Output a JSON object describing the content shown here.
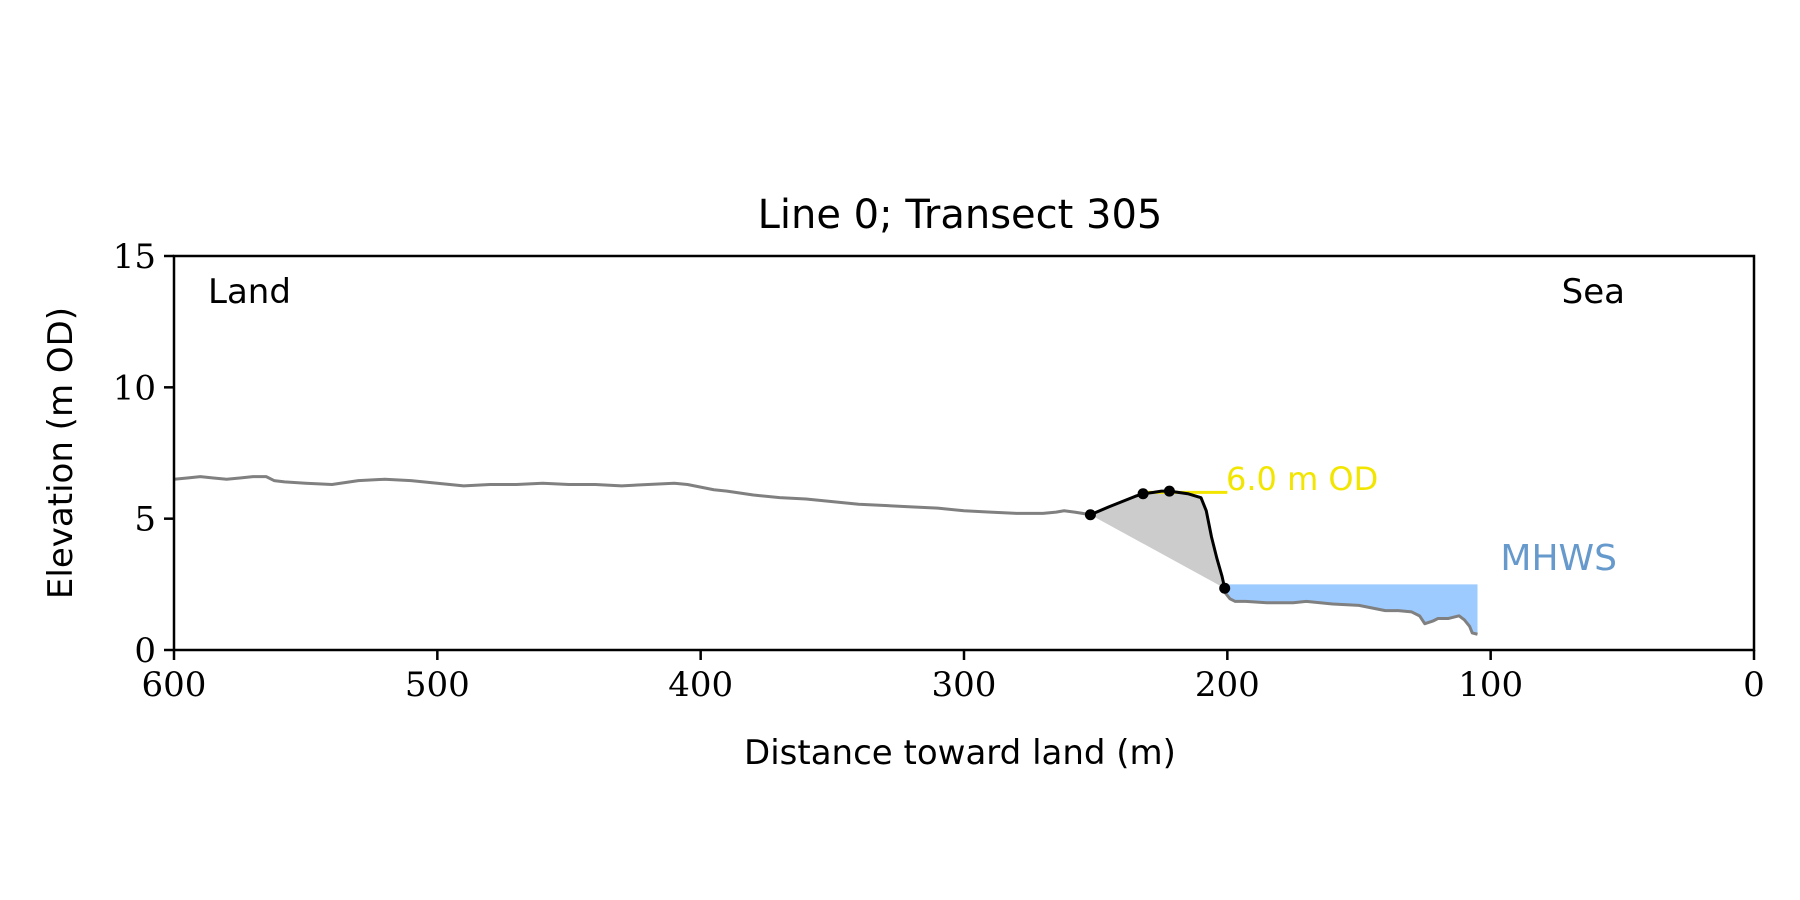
{
  "chart_data": {
    "type": "line",
    "title": "Line 0; Transect 305",
    "xlabel": "Distance toward land (m)",
    "ylabel": "Elevation (m OD)",
    "xlim": [
      600,
      0
    ],
    "ylim": [
      0,
      15
    ],
    "x_reversed": true,
    "xticks": [
      600,
      500,
      400,
      300,
      200,
      100,
      0
    ],
    "yticks": [
      0,
      5,
      10,
      15
    ],
    "grid": false,
    "annotations": {
      "land_label": "Land",
      "sea_label": "Sea",
      "mhws_label": "MHWS",
      "crest_label": "6.0 m OD"
    },
    "colors": {
      "profile": "#808080",
      "feature": "#000000",
      "feature_fill": "#cccccc",
      "mhws_fill": "#9ecbff",
      "mhws_text": "#6699cc",
      "crest": "#f2e600"
    },
    "mhws": {
      "elevation": 2.5,
      "x_start": 200,
      "x_end": 105
    },
    "crest": {
      "elevation": 6.0,
      "x_start": 232,
      "x_end": 200
    },
    "series": [
      {
        "role": "profile",
        "x": [
          600,
          595,
          590,
          585,
          580,
          575,
          570,
          565,
          562,
          558,
          550,
          540,
          530,
          520,
          510,
          500,
          490,
          480,
          470,
          460,
          450,
          440,
          430,
          420,
          410,
          405,
          400,
          395,
          390,
          380,
          370,
          360,
          350,
          340,
          330,
          320,
          310,
          300,
          290,
          280,
          270,
          265,
          262,
          258,
          255,
          252
        ],
        "y": [
          6.5,
          6.55,
          6.6,
          6.55,
          6.5,
          6.55,
          6.6,
          6.6,
          6.45,
          6.4,
          6.35,
          6.3,
          6.45,
          6.5,
          6.45,
          6.35,
          6.25,
          6.3,
          6.3,
          6.35,
          6.3,
          6.3,
          6.25,
          6.3,
          6.35,
          6.3,
          6.2,
          6.1,
          6.05,
          5.9,
          5.8,
          5.75,
          5.65,
          5.55,
          5.5,
          5.45,
          5.4,
          5.3,
          5.25,
          5.2,
          5.2,
          5.25,
          5.3,
          5.25,
          5.2,
          5.15
        ]
      },
      {
        "role": "profile",
        "x": [
          201,
          199,
          197,
          193,
          185,
          175,
          170,
          160,
          150,
          145,
          140,
          135,
          130,
          127,
          125,
          122,
          120,
          116,
          112,
          110,
          108,
          107,
          105
        ],
        "y": [
          2.2,
          1.95,
          1.85,
          1.85,
          1.8,
          1.8,
          1.85,
          1.75,
          1.7,
          1.6,
          1.5,
          1.5,
          1.45,
          1.3,
          1.0,
          1.1,
          1.2,
          1.2,
          1.3,
          1.15,
          0.9,
          0.65,
          0.6
        ]
      },
      {
        "role": "feature",
        "x": [
          252,
          245,
          240,
          235,
          232,
          228,
          225,
          222,
          215,
          210,
          208,
          206,
          204,
          202,
          201
        ],
        "y": [
          5.15,
          5.45,
          5.65,
          5.85,
          5.95,
          6.0,
          6.05,
          6.05,
          5.95,
          5.8,
          5.3,
          4.3,
          3.5,
          2.8,
          2.35
        ]
      }
    ],
    "feature_points": {
      "x": [
        252,
        232,
        222,
        201
      ],
      "y": [
        5.15,
        5.95,
        6.05,
        2.35
      ]
    }
  }
}
